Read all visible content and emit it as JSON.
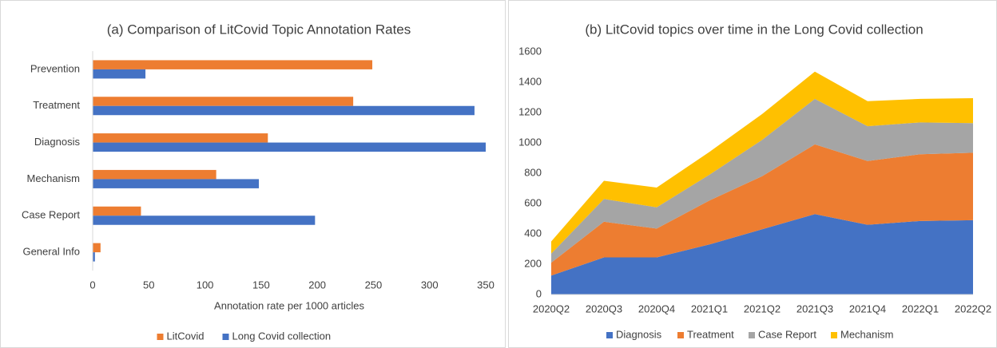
{
  "chart_data": [
    {
      "type": "hbar",
      "title": "(a) Comparison of LitCovid Topic Annotation Rates",
      "categories": [
        "Prevention",
        "Treatment",
        "Diagnosis",
        "Mechanism",
        "Case Report",
        "General Info"
      ],
      "series": [
        {
          "name": "LitCovid",
          "color": "#ed7d31",
          "values": [
            249,
            232,
            156,
            110,
            43,
            7
          ]
        },
        {
          "name": "Long Covid collection",
          "color": "#4472c4",
          "values": [
            47,
            340,
            350,
            148,
            198,
            2
          ]
        }
      ],
      "x_label": "Annotation rate per 1000 articles",
      "xlim": [
        0,
        350
      ],
      "xticks": [
        0,
        50,
        100,
        150,
        200,
        250,
        300,
        350
      ],
      "legend": "bottom"
    },
    {
      "type": "stacked_area",
      "title": "(b) LitCovid topics over time in the Long Covid collection",
      "categories": [
        "2020Q2",
        "2020Q3",
        "2020Q4",
        "2021Q1",
        "2021Q2",
        "2021Q3",
        "2021Q4",
        "2022Q1",
        "2022Q2"
      ],
      "series": [
        {
          "name": "Diagnosis",
          "color": "#4472c4",
          "values": [
            125,
            245,
            245,
            330,
            430,
            530,
            460,
            485,
            490
          ]
        },
        {
          "name": "Treatment",
          "color": "#ed7d31",
          "values": [
            85,
            235,
            190,
            290,
            350,
            460,
            420,
            440,
            445
          ]
        },
        {
          "name": "Case Report",
          "color": "#a5a5a5",
          "values": [
            60,
            150,
            140,
            170,
            240,
            300,
            230,
            210,
            195
          ]
        },
        {
          "name": "Mechanism",
          "color": "#ffc000",
          "values": [
            80,
            120,
            130,
            150,
            170,
            180,
            165,
            155,
            165
          ]
        }
      ],
      "ylim": [
        0,
        1600
      ],
      "yticks": [
        0,
        200,
        400,
        600,
        800,
        1000,
        1200,
        1400,
        1600
      ],
      "legend": "bottom"
    }
  ]
}
